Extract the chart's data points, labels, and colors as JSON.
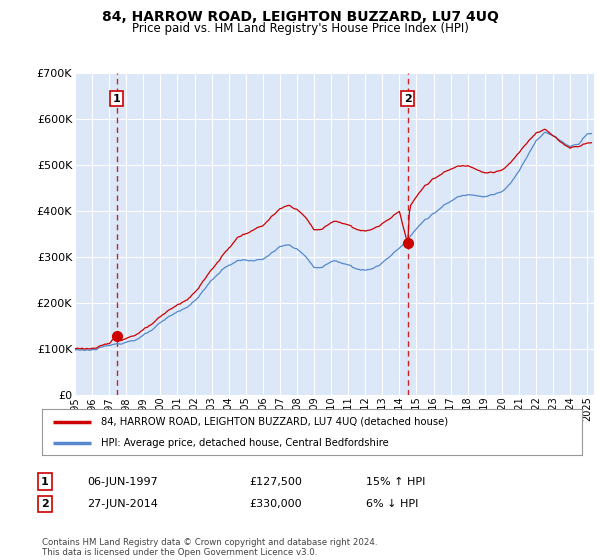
{
  "title": "84, HARROW ROAD, LEIGHTON BUZZARD, LU7 4UQ",
  "subtitle": "Price paid vs. HM Land Registry's House Price Index (HPI)",
  "legend_line1": "84, HARROW ROAD, LEIGHTON BUZZARD, LU7 4UQ (detached house)",
  "legend_line2": "HPI: Average price, detached house, Central Bedfordshire",
  "sale1_label": "1",
  "sale1_date": "06-JUN-1997",
  "sale1_price": "£127,500",
  "sale1_hpi": "15% ↑ HPI",
  "sale1_year": 1997.44,
  "sale1_value": 127500,
  "sale2_label": "2",
  "sale2_date": "27-JUN-2014",
  "sale2_price": "£330,000",
  "sale2_hpi": "6% ↓ HPI",
  "sale2_year": 2014.49,
  "sale2_value": 330000,
  "price_line_color": "#cc0000",
  "hpi_line_color": "#5588cc",
  "dashed_line_color": "#cc2222",
  "background_color": "#ffffff",
  "plot_bg_color": "#dce8f8",
  "grid_color": "#ffffff",
  "ylim": [
    0,
    700000
  ],
  "yticks": [
    0,
    100000,
    200000,
    300000,
    400000,
    500000,
    600000,
    700000
  ],
  "ytick_labels": [
    "£0",
    "£100K",
    "£200K",
    "£300K",
    "£400K",
    "£500K",
    "£600K",
    "£700K"
  ],
  "xlim_start": 1995.0,
  "xlim_end": 2025.4,
  "footer": "Contains HM Land Registry data © Crown copyright and database right 2024.\nThis data is licensed under the Open Government Licence v3.0."
}
